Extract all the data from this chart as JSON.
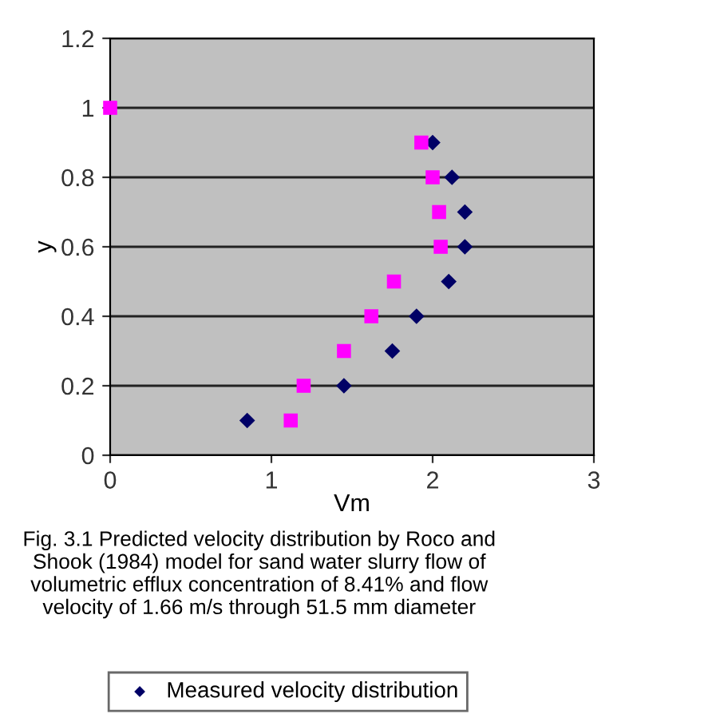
{
  "chart_data": {
    "type": "scatter",
    "xlabel": "Vm",
    "ylabel": "y",
    "xlim": [
      0,
      3
    ],
    "ylim": [
      0,
      1.2
    ],
    "xticks": [
      0,
      1,
      2,
      3
    ],
    "yticks": [
      0,
      0.2,
      0.4,
      0.6,
      0.8,
      1,
      1.2
    ],
    "grid": "y",
    "legend": "bottom",
    "annotations": [
      "Fig. 3.1 Predicted velocity distribution by Roco and Shook (1984) model for sand water slurry flow of volumetric efflux concentration of 8.41% and flow velocity of 1.66 m/s through 51.5 mm diameter"
    ],
    "series": [
      {
        "name": "Measured velocity distribution",
        "color": "#000066",
        "marker": "diamond",
        "x": [
          0.85,
          1.45,
          1.75,
          1.9,
          2.1,
          2.2,
          2.2,
          2.12,
          2.0
        ],
        "values": [
          0.1,
          0.2,
          0.3,
          0.4,
          0.5,
          0.6,
          0.7,
          0.8,
          0.9
        ]
      },
      {
        "color": "#ff00ff",
        "marker": "square",
        "x": [
          0,
          1.12,
          1.2,
          1.45,
          1.62,
          1.76,
          2.05,
          2.04,
          2.0,
          1.93
        ],
        "values": [
          1,
          0.1,
          0.2,
          0.3,
          0.4,
          0.5,
          0.6,
          0.7,
          0.8,
          0.9
        ]
      }
    ]
  }
}
